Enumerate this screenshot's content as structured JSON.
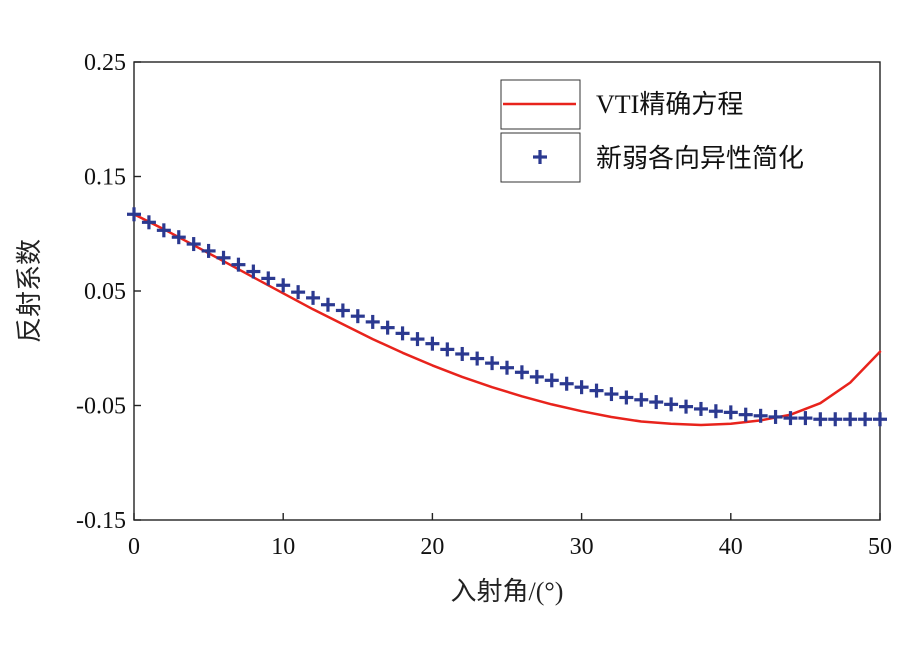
{
  "chart_data": {
    "type": "line",
    "title": "",
    "xlabel": "入射角/(°)",
    "ylabel": "反射系数",
    "xlim": [
      0,
      50
    ],
    "ylim": [
      -0.15,
      0.25
    ],
    "xticks": [
      0,
      10,
      20,
      30,
      40,
      50
    ],
    "yticks": [
      -0.15,
      -0.05,
      0.05,
      0.15,
      0.25
    ],
    "xtick_labels": [
      "0",
      "10",
      "20",
      "30",
      "40",
      "50"
    ],
    "ytick_labels": [
      "-0.15",
      "-0.05",
      "0.05",
      "0.15",
      "0.25"
    ],
    "grid": false,
    "legend_position": "top-right",
    "series": [
      {
        "name": "VTI精确方程",
        "style": "line",
        "color": "#e8231c",
        "x": [
          0,
          2,
          4,
          6,
          8,
          10,
          12,
          14,
          16,
          18,
          20,
          22,
          24,
          26,
          28,
          30,
          32,
          34,
          36,
          38,
          40,
          42,
          44,
          46,
          48,
          50
        ],
        "y": [
          0.117,
          0.104,
          0.09,
          0.076,
          0.062,
          0.048,
          0.034,
          0.021,
          0.008,
          -0.004,
          -0.015,
          -0.025,
          -0.034,
          -0.042,
          -0.049,
          -0.055,
          -0.06,
          -0.064,
          -0.066,
          -0.067,
          -0.066,
          -0.063,
          -0.058,
          -0.048,
          -0.03,
          -0.003
        ]
      },
      {
        "name": "新弱各向异性简化",
        "style": "marker",
        "marker": "plus",
        "color": "#2b3990",
        "x": [
          0,
          1,
          2,
          3,
          4,
          5,
          6,
          7,
          8,
          9,
          10,
          11,
          12,
          13,
          14,
          15,
          16,
          17,
          18,
          19,
          20,
          21,
          22,
          23,
          24,
          25,
          26,
          27,
          28,
          29,
          30,
          31,
          32,
          33,
          34,
          35,
          36,
          37,
          38,
          39,
          40,
          41,
          42,
          43,
          44,
          45,
          46,
          47,
          48,
          49,
          50
        ],
        "y": [
          0.117,
          0.11,
          0.103,
          0.097,
          0.091,
          0.085,
          0.079,
          0.073,
          0.067,
          0.061,
          0.055,
          0.049,
          0.044,
          0.038,
          0.033,
          0.028,
          0.023,
          0.018,
          0.013,
          0.008,
          0.004,
          -0.001,
          -0.005,
          -0.009,
          -0.013,
          -0.017,
          -0.021,
          -0.025,
          -0.028,
          -0.031,
          -0.034,
          -0.037,
          -0.04,
          -0.043,
          -0.045,
          -0.047,
          -0.049,
          -0.051,
          -0.053,
          -0.055,
          -0.056,
          -0.058,
          -0.059,
          -0.06,
          -0.061,
          -0.061,
          -0.062,
          -0.062,
          -0.062,
          -0.062,
          -0.062
        ]
      }
    ]
  }
}
